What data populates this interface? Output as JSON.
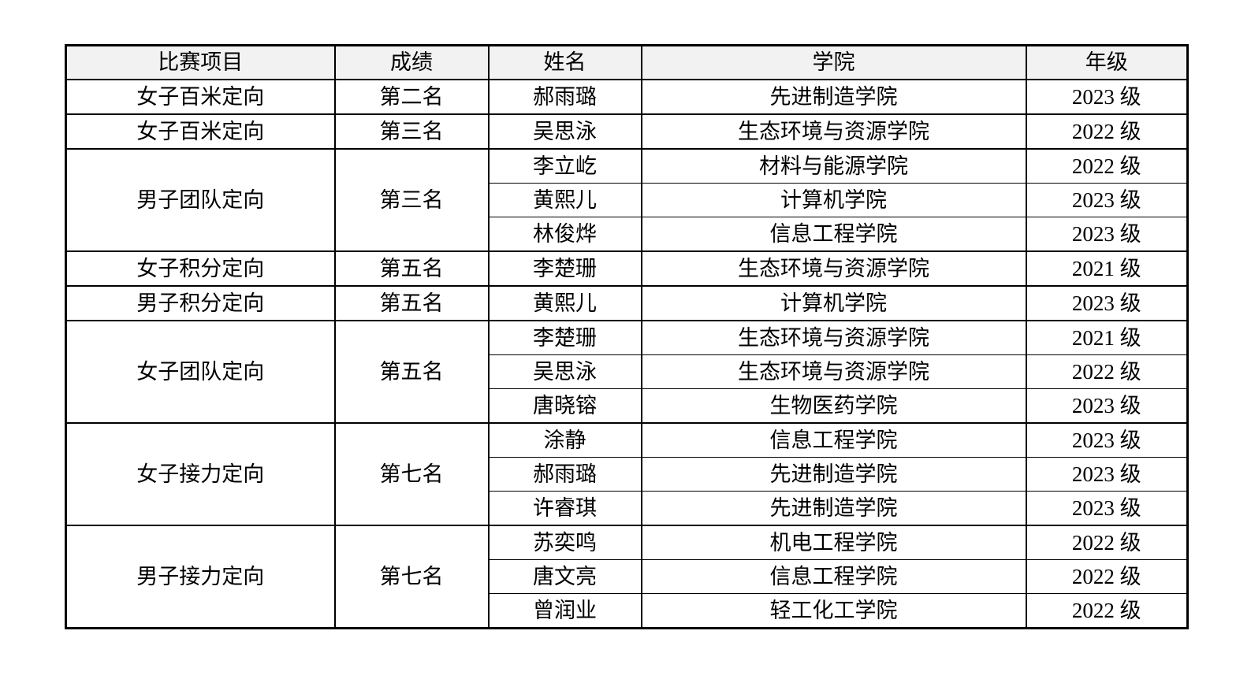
{
  "colors": {
    "page_bg": "#ffffff",
    "header_bg": "#f2f2f2",
    "border": "#000000",
    "text": "#000000"
  },
  "table": {
    "headers": [
      "比赛项目",
      "成绩",
      "姓名",
      "学院",
      "年级"
    ],
    "groups": [
      {
        "event": "女子百米定向",
        "result": "第二名",
        "members": [
          {
            "name": "郝雨璐",
            "college": "先进制造学院",
            "grade": "2023 级"
          }
        ]
      },
      {
        "event": "女子百米定向",
        "result": "第三名",
        "members": [
          {
            "name": "吴思泳",
            "college": "生态环境与资源学院",
            "grade": "2022 级"
          }
        ]
      },
      {
        "event": "男子团队定向",
        "result": "第三名",
        "members": [
          {
            "name": "李立屹",
            "college": "材料与能源学院",
            "grade": "2022 级"
          },
          {
            "name": "黄熙儿",
            "college": "计算机学院",
            "grade": "2023 级"
          },
          {
            "name": "林俊烨",
            "college": "信息工程学院",
            "grade": "2023 级"
          }
        ]
      },
      {
        "event": "女子积分定向",
        "result": "第五名",
        "members": [
          {
            "name": "李楚珊",
            "college": "生态环境与资源学院",
            "grade": "2021 级"
          }
        ]
      },
      {
        "event": "男子积分定向",
        "result": "第五名",
        "members": [
          {
            "name": "黄熙儿",
            "college": "计算机学院",
            "grade": "2023 级"
          }
        ]
      },
      {
        "event": "女子团队定向",
        "result": "第五名",
        "members": [
          {
            "name": "李楚珊",
            "college": "生态环境与资源学院",
            "grade": "2021 级"
          },
          {
            "name": "吴思泳",
            "college": "生态环境与资源学院",
            "grade": "2022 级"
          },
          {
            "name": "唐晓镕",
            "college": "生物医药学院",
            "grade": "2023 级"
          }
        ]
      },
      {
        "event": "女子接力定向",
        "result": "第七名",
        "members": [
          {
            "name": "涂静",
            "college": "信息工程学院",
            "grade": "2023 级"
          },
          {
            "name": "郝雨璐",
            "college": "先进制造学院",
            "grade": "2023 级"
          },
          {
            "name": "许睿琪",
            "college": "先进制造学院",
            "grade": "2023 级"
          }
        ]
      },
      {
        "event": "男子接力定向",
        "result": "第七名",
        "members": [
          {
            "name": "苏奕鸣",
            "college": "机电工程学院",
            "grade": "2022 级"
          },
          {
            "name": "唐文亮",
            "college": "信息工程学院",
            "grade": "2022 级"
          },
          {
            "name": "曾润业",
            "college": "轻工化工学院",
            "grade": "2022 级"
          }
        ]
      }
    ]
  }
}
